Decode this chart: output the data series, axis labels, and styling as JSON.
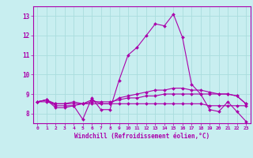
{
  "xlabel": "Windchill (Refroidissement éolien,°C)",
  "background_color": "#c8eef0",
  "grid_color": "#aadddd",
  "line_color": "#aa00aa",
  "xlim": [
    -0.5,
    23.5
  ],
  "ylim": [
    7.5,
    13.5
  ],
  "xticks": [
    0,
    1,
    2,
    3,
    4,
    5,
    6,
    7,
    8,
    9,
    10,
    11,
    12,
    13,
    14,
    15,
    16,
    17,
    18,
    19,
    20,
    21,
    22,
    23
  ],
  "yticks": [
    8,
    9,
    10,
    11,
    12,
    13
  ],
  "series": [
    [
      8.6,
      8.7,
      8.3,
      8.3,
      8.4,
      7.7,
      8.8,
      8.2,
      8.2,
      9.7,
      11.0,
      11.4,
      12.0,
      12.6,
      12.5,
      13.1,
      11.9,
      9.5,
      9.0,
      8.2,
      8.1,
      8.6,
      8.1,
      7.6
    ],
    [
      8.6,
      8.7,
      8.4,
      8.4,
      8.4,
      8.5,
      8.6,
      8.6,
      8.6,
      8.7,
      8.8,
      8.8,
      8.9,
      8.9,
      9.0,
      9.0,
      9.0,
      9.0,
      9.0,
      9.0,
      9.0,
      9.0,
      8.9,
      8.5
    ],
    [
      8.6,
      8.6,
      8.5,
      8.5,
      8.5,
      8.5,
      8.5,
      8.5,
      8.5,
      8.5,
      8.5,
      8.5,
      8.5,
      8.5,
      8.5,
      8.5,
      8.5,
      8.5,
      8.5,
      8.4,
      8.4,
      8.4,
      8.4,
      8.4
    ],
    [
      8.6,
      8.7,
      8.5,
      8.5,
      8.6,
      8.5,
      8.7,
      8.5,
      8.5,
      8.8,
      8.9,
      9.0,
      9.1,
      9.2,
      9.2,
      9.3,
      9.3,
      9.2,
      9.2,
      9.1,
      9.0,
      9.0,
      8.9,
      8.5
    ]
  ]
}
